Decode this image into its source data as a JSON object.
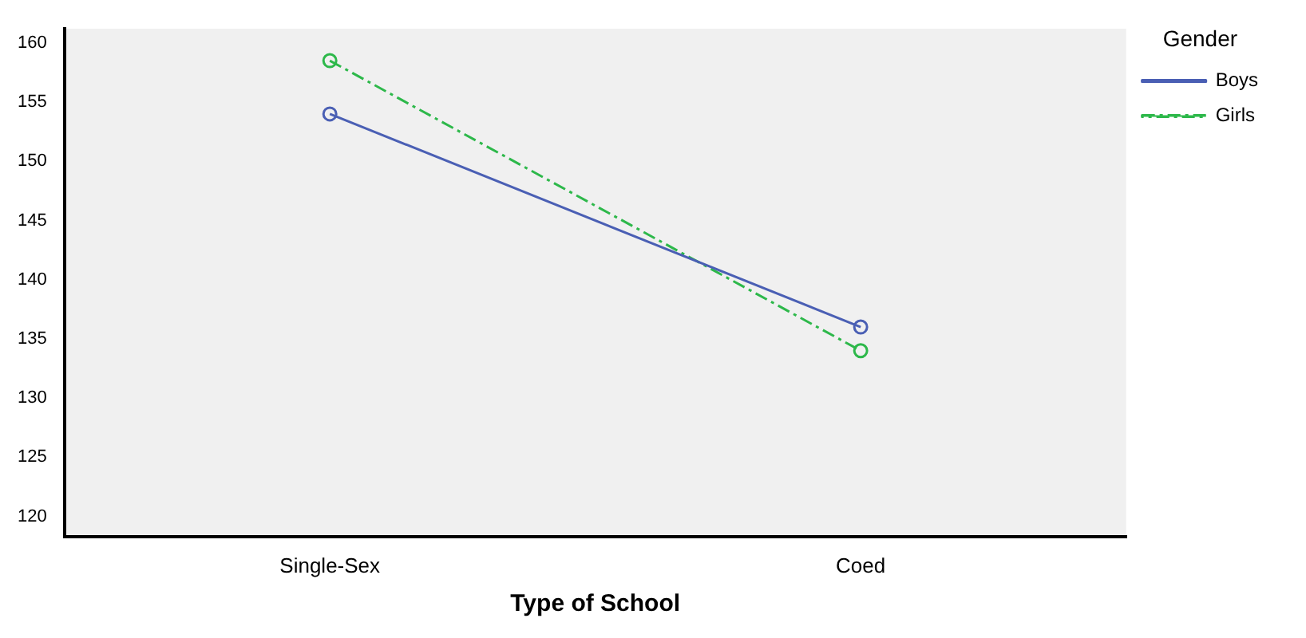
{
  "chart_data": {
    "type": "line",
    "xlabel": "Type of School",
    "legend_title": "Gender",
    "categories": [
      "Single-Sex",
      "Coed"
    ],
    "series": [
      {
        "name": "Boys",
        "color": "#4a5fb4",
        "values": [
          154,
          136
        ],
        "line_style": "solid"
      },
      {
        "name": "Girls",
        "color": "#2db84a",
        "values": [
          158.5,
          134
        ],
        "line_style": "dashed"
      }
    ],
    "ylim": [
      118.3,
      161.2
    ],
    "yticks": [
      120,
      125,
      130,
      135,
      140,
      145,
      150,
      155,
      160
    ],
    "grid": false,
    "legend": "right",
    "marker": "circle"
  }
}
